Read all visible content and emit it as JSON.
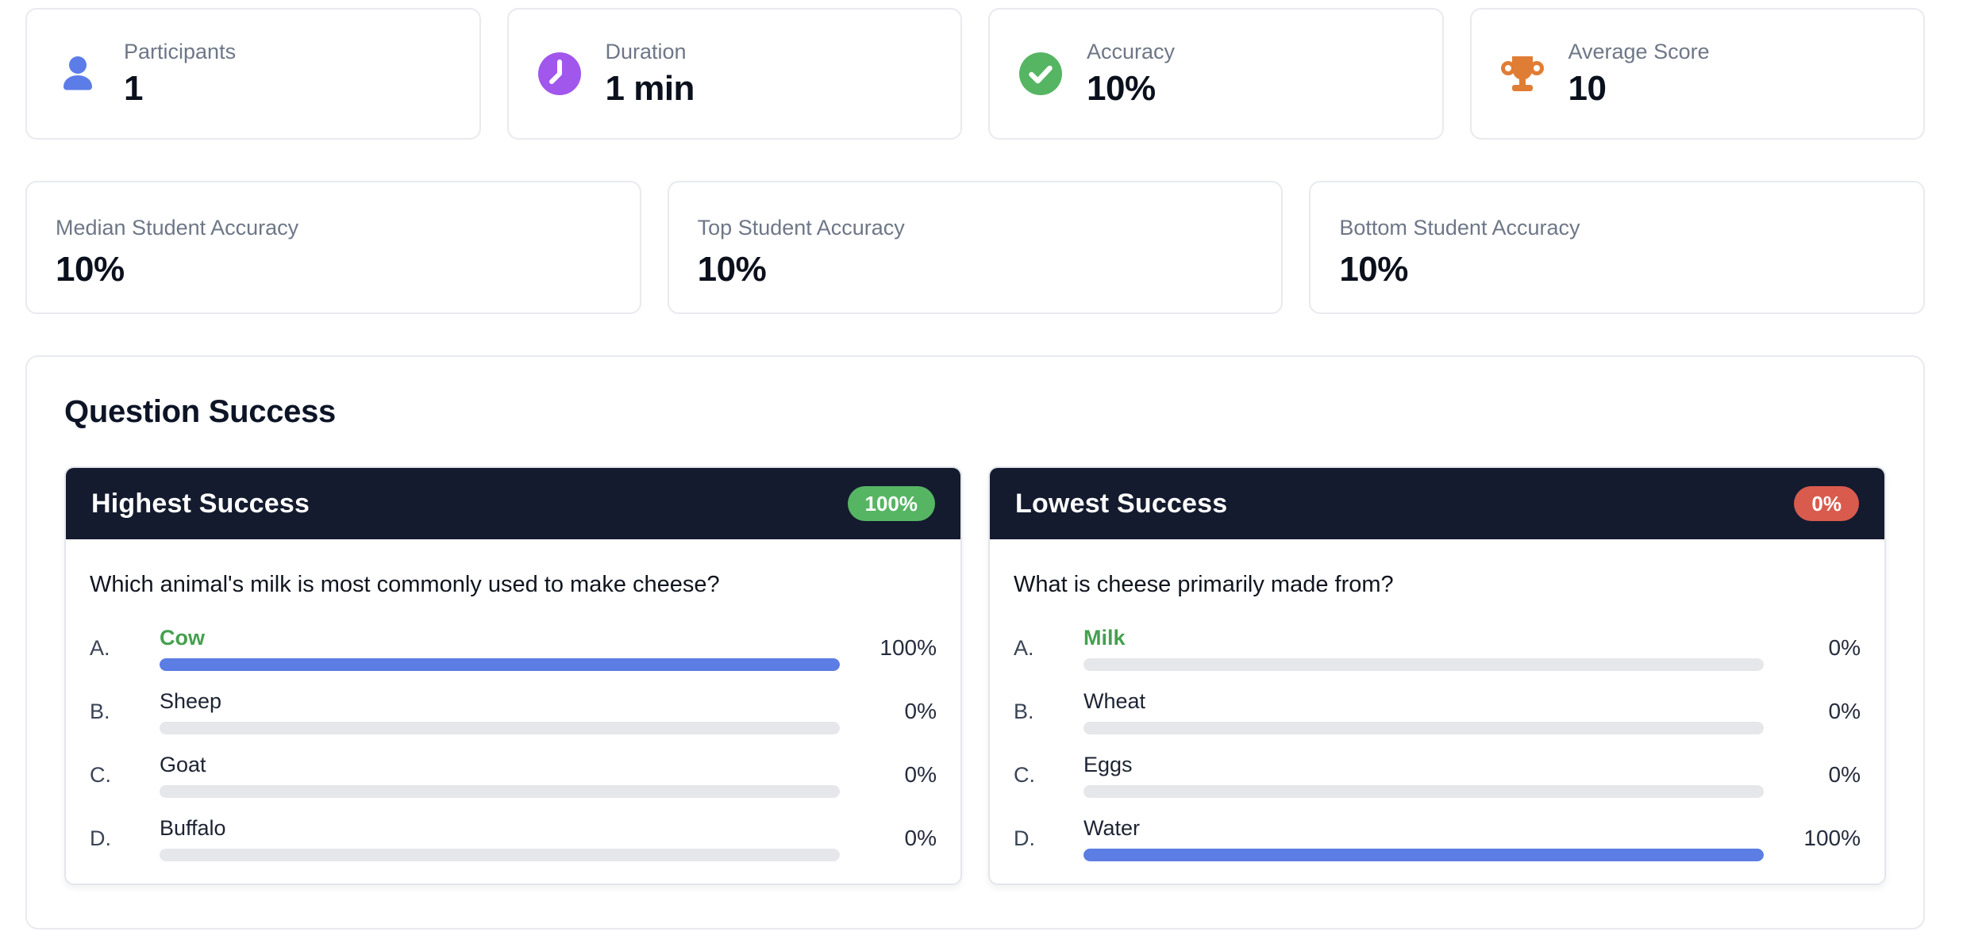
{
  "colors": {
    "bar_fill_blue": "#5b7de4",
    "bar_track_gray": "#e5e7ea",
    "icon_blue": "#5c7de8",
    "icon_purple": "#a156ec",
    "icon_green": "#56b563",
    "icon_orange": "#e07d35",
    "badge_green": "#56b563",
    "badge_red": "#d95b4e",
    "card_header_navy": "#141b2e",
    "correct_answer_green": "#45a04f",
    "label_gray": "#6e7787",
    "value_dark": "#0b101d"
  },
  "stats_primary": [
    {
      "label": "Participants",
      "value": "1",
      "icon": "person-icon"
    },
    {
      "label": "Duration",
      "value": "1 min",
      "icon": "clock-icon"
    },
    {
      "label": "Accuracy",
      "value": "10%",
      "icon": "check-icon"
    },
    {
      "label": "Average Score",
      "value": "10",
      "icon": "trophy-icon"
    }
  ],
  "stats_secondary": [
    {
      "label": "Median Student Accuracy",
      "value": "10%"
    },
    {
      "label": "Top Student Accuracy",
      "value": "10%"
    },
    {
      "label": "Bottom Student Accuracy",
      "value": "10%"
    }
  ],
  "question_success": {
    "title": "Question Success",
    "cards": [
      {
        "heading": "Highest Success",
        "badge": "100%",
        "badge_color": "#56b563",
        "question": "Which animal's milk is most commonly used to make cheese?",
        "options": [
          {
            "letter": "A.",
            "label": "Cow",
            "percent": "100%",
            "value": 100,
            "correct": true
          },
          {
            "letter": "B.",
            "label": "Sheep",
            "percent": "0%",
            "value": 0,
            "correct": false
          },
          {
            "letter": "C.",
            "label": "Goat",
            "percent": "0%",
            "value": 0,
            "correct": false
          },
          {
            "letter": "D.",
            "label": "Buffalo",
            "percent": "0%",
            "value": 0,
            "correct": false
          }
        ]
      },
      {
        "heading": "Lowest Success",
        "badge": "0%",
        "badge_color": "#d95b4e",
        "question": "What is cheese primarily made from?",
        "options": [
          {
            "letter": "A.",
            "label": "Milk",
            "percent": "0%",
            "value": 0,
            "correct": true
          },
          {
            "letter": "B.",
            "label": "Wheat",
            "percent": "0%",
            "value": 0,
            "correct": false
          },
          {
            "letter": "C.",
            "label": "Eggs",
            "percent": "0%",
            "value": 0,
            "correct": false
          },
          {
            "letter": "D.",
            "label": "Water",
            "percent": "100%",
            "value": 100,
            "correct": false
          }
        ]
      }
    ]
  }
}
